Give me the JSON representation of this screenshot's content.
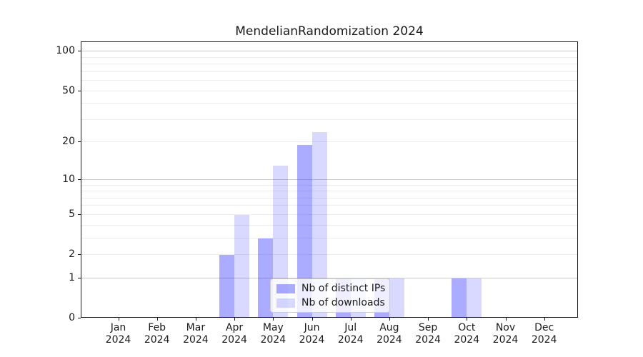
{
  "title": "MendelianRandomization 2024",
  "chart_data": {
    "type": "bar",
    "title": "MendelianRandomization 2024",
    "categories": [
      "Jan",
      "Feb",
      "Mar",
      "Apr",
      "May",
      "Jun",
      "Jul",
      "Aug",
      "Sep",
      "Oct",
      "Nov",
      "Dec"
    ],
    "year": "2024",
    "series": [
      {
        "name": "Nb of distinct IPs",
        "color": "rgba(0,0,255,0.33)",
        "values": [
          0,
          0,
          0,
          2,
          3,
          19,
          1,
          1,
          0,
          1,
          0,
          0
        ]
      },
      {
        "name": "Nb of downloads",
        "color": "rgba(0,0,255,0.15)",
        "values": [
          0,
          0,
          0,
          5,
          13,
          24,
          1,
          1,
          0,
          1,
          0,
          0
        ]
      }
    ],
    "xlabel": "",
    "ylabel": "",
    "scale": "log1p",
    "y_ticks": [
      0,
      1,
      2,
      5,
      10,
      20,
      50,
      100
    ],
    "ylim": [
      0,
      118
    ],
    "grid_minor": [
      2,
      3,
      4,
      5,
      6,
      7,
      8,
      9,
      20,
      30,
      40,
      50,
      60,
      70,
      80,
      90
    ],
    "grid_major": [
      1,
      10,
      100
    ],
    "grid": "on",
    "legend_position": "lower-center-inside"
  },
  "colors": {
    "distinct_ips": "rgba(0,0,255,0.33)",
    "downloads": "rgba(0,0,255,0.15)",
    "grid_minor": "#ededed",
    "grid_major": "#cccccc",
    "spine": "#1a1a1a",
    "background": "#ffffff"
  }
}
